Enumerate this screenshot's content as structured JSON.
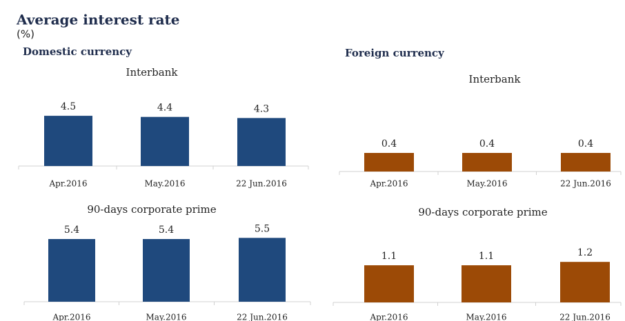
{
  "title": "Average interest rate",
  "unit": "(%)",
  "sections": [
    "Domestic currency",
    "Foreign currency"
  ],
  "chart_data": [
    {
      "type": "bar",
      "title": "Interbank",
      "categories": [
        "Apr.2016",
        "May.2016",
        "22 Jun.2016"
      ],
      "values": [
        4.5,
        4.4,
        4.3
      ],
      "color": "#1f497d"
    },
    {
      "type": "bar",
      "title": "90-days corporate prime",
      "categories": [
        "Apr.2016",
        "May.2016",
        "22 Jun.2016"
      ],
      "values": [
        5.4,
        5.4,
        5.5
      ],
      "color": "#1f497d"
    },
    {
      "type": "bar",
      "title": "Interbank",
      "categories": [
        "Apr.2016",
        "May.2016",
        "22 Jun.2016"
      ],
      "values": [
        0.4,
        0.4,
        0.4
      ],
      "color": "#9c4a06"
    },
    {
      "type": "bar",
      "title": "90-days corporate prime",
      "categories": [
        "Apr.2016",
        "May.2016",
        "22 Jun.2016"
      ],
      "values": [
        1.1,
        1.1,
        1.2
      ],
      "color": "#9c4a06"
    }
  ]
}
